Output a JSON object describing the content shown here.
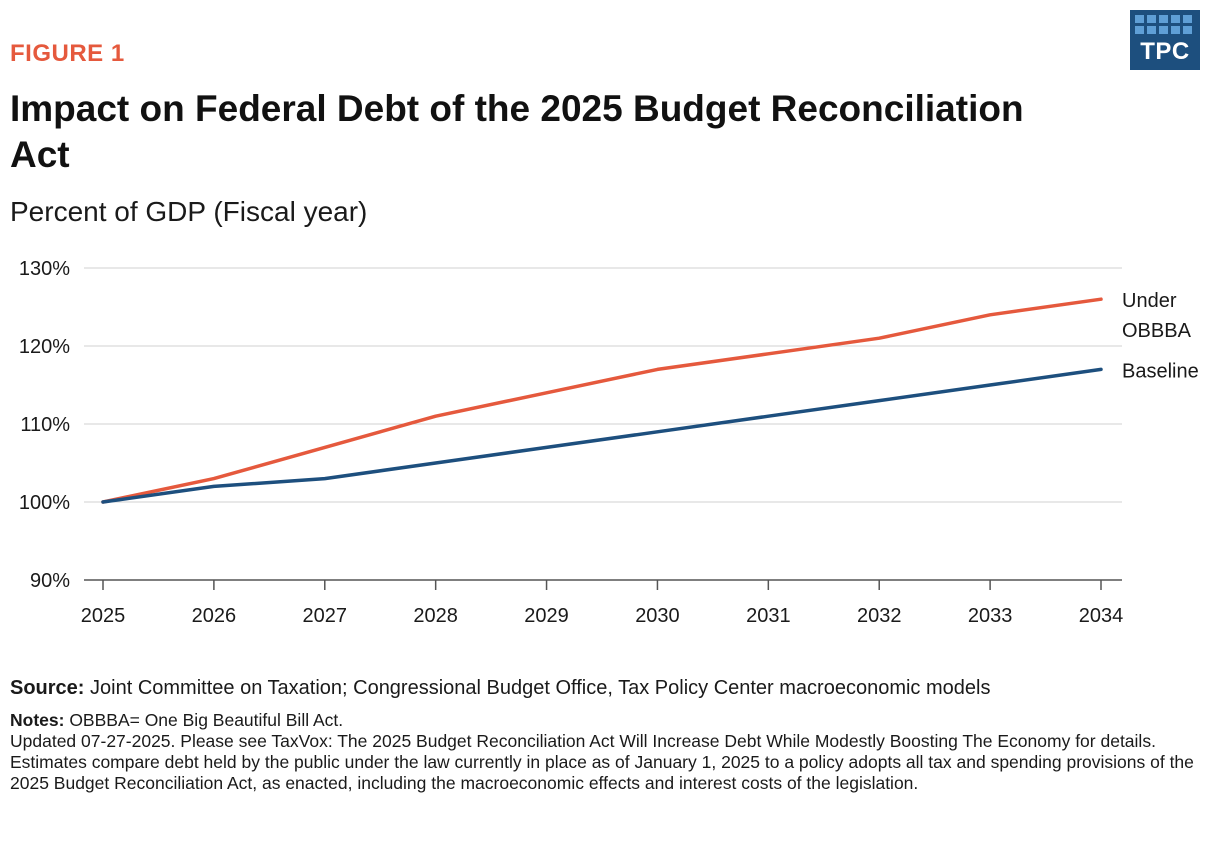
{
  "figure_label": "FIGURE 1",
  "logo": {
    "text": "TPC"
  },
  "chart_data": {
    "type": "line",
    "title": "Impact on Federal Debt of the 2025 Budget Reconciliation Act",
    "subtitle": "Percent of GDP (Fiscal year)",
    "x": [
      2025,
      2026,
      2027,
      2028,
      2029,
      2030,
      2031,
      2032,
      2033,
      2034
    ],
    "y_ticks": [
      90,
      100,
      110,
      120,
      130
    ],
    "y_tick_labels": [
      "90%",
      "100%",
      "110%",
      "120%",
      "130%"
    ],
    "ylim": [
      90,
      130
    ],
    "grid": true,
    "series": [
      {
        "name": "Under OBBBA",
        "label_lines": [
          "Under",
          "OBBBA"
        ],
        "color": "#e5593d",
        "values": [
          100,
          103,
          107,
          111,
          114,
          117,
          119,
          121,
          124,
          126
        ]
      },
      {
        "name": "Baseline",
        "label_lines": [
          "Baseline"
        ],
        "color": "#1d4f7e",
        "values": [
          100,
          102,
          103,
          105,
          107,
          109,
          111,
          113,
          115,
          117
        ]
      }
    ]
  },
  "footer": {
    "source_label": "Source:",
    "source_text": " Joint Committee on Taxation; Congressional Budget Office, Tax Policy Center macroeconomic models",
    "notes_label": "Notes:",
    "notes_first": " OBBBA= One Big Beautiful Bill Act.",
    "notes_updated": "Updated 07-27-2025. Please see TaxVox: The 2025 Budget Reconciliation Act Will Increase Debt While Modestly Boosting The Economy for details.",
    "notes_estimates": "Estimates compare debt held by the public under the law currently in place as of January 1, 2025 to a policy adopts all tax and spending provisions of the 2025 Budget Reconciliation Act, as enacted, including the macroeconomic effects and interest costs of the legislation."
  }
}
